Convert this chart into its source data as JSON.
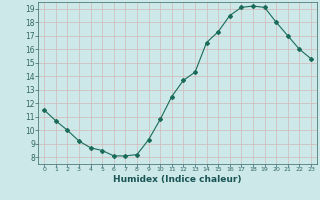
{
  "x": [
    0,
    1,
    2,
    3,
    4,
    5,
    6,
    7,
    8,
    9,
    10,
    11,
    12,
    13,
    14,
    15,
    16,
    17,
    18,
    19,
    20,
    21,
    22,
    23
  ],
  "y": [
    11.5,
    10.7,
    10.0,
    9.2,
    8.7,
    8.5,
    8.1,
    8.1,
    8.2,
    9.3,
    10.8,
    12.5,
    13.7,
    14.3,
    16.5,
    17.3,
    18.5,
    19.1,
    19.2,
    19.1,
    18.0,
    17.0,
    16.0,
    15.3
  ],
  "xlabel": "Humidex (Indice chaleur)",
  "ylim": [
    7.5,
    19.5
  ],
  "xlim": [
    -0.5,
    23.5
  ],
  "yticks": [
    8,
    9,
    10,
    11,
    12,
    13,
    14,
    15,
    16,
    17,
    18,
    19
  ],
  "xticks": [
    0,
    1,
    2,
    3,
    4,
    5,
    6,
    7,
    8,
    9,
    10,
    11,
    12,
    13,
    14,
    15,
    16,
    17,
    18,
    19,
    20,
    21,
    22,
    23
  ],
  "line_color": "#1a6b5a",
  "marker": "D",
  "marker_size": 2.0,
  "bg_color": "#cce8e8",
  "grid_color": "#d4b8b8",
  "axis_color": "#336666"
}
